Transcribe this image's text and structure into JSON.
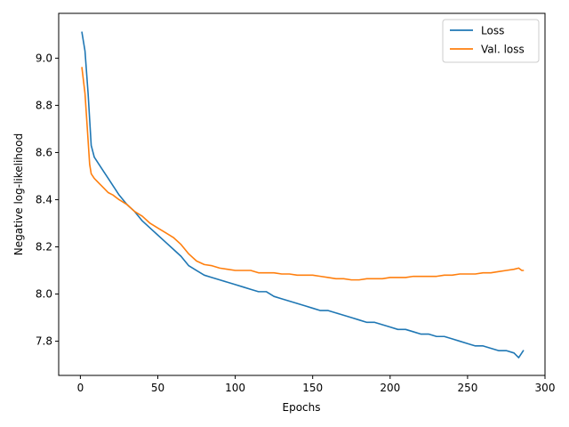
{
  "chart_data": {
    "type": "line",
    "title": "",
    "xlabel": "Epochs",
    "ylabel": "Negative log-likelihood",
    "xlim": [
      -14,
      300
    ],
    "ylim": [
      7.655,
      9.19
    ],
    "xticks": [
      0,
      50,
      100,
      150,
      200,
      250,
      300
    ],
    "yticks": [
      7.8,
      8.0,
      8.2,
      8.4,
      8.6,
      8.8,
      9.0
    ],
    "grid": false,
    "legend_position": "top-right",
    "series": [
      {
        "name": "Loss",
        "color": "#1f77b4",
        "x": [
          1,
          3,
          5,
          7,
          9,
          12,
          15,
          18,
          21,
          25,
          30,
          35,
          40,
          45,
          50,
          55,
          60,
          65,
          70,
          75,
          80,
          85,
          90,
          95,
          100,
          105,
          110,
          115,
          120,
          125,
          130,
          135,
          140,
          145,
          150,
          155,
          160,
          165,
          170,
          175,
          180,
          185,
          190,
          195,
          200,
          205,
          210,
          215,
          220,
          225,
          230,
          235,
          240,
          245,
          250,
          255,
          260,
          265,
          270,
          275,
          280,
          283,
          285,
          286
        ],
        "y": [
          9.11,
          9.03,
          8.85,
          8.63,
          8.58,
          8.55,
          8.52,
          8.49,
          8.46,
          8.42,
          8.38,
          8.35,
          8.31,
          8.28,
          8.25,
          8.22,
          8.19,
          8.16,
          8.12,
          8.1,
          8.08,
          8.07,
          8.06,
          8.05,
          8.04,
          8.03,
          8.02,
          8.01,
          8.01,
          7.99,
          7.98,
          7.97,
          7.96,
          7.95,
          7.94,
          7.93,
          7.93,
          7.92,
          7.91,
          7.9,
          7.89,
          7.88,
          7.88,
          7.87,
          7.86,
          7.85,
          7.85,
          7.84,
          7.83,
          7.83,
          7.82,
          7.82,
          7.81,
          7.8,
          7.79,
          7.78,
          7.78,
          7.77,
          7.76,
          7.76,
          7.75,
          7.73,
          7.75,
          7.76
        ]
      },
      {
        "name": "Val. loss",
        "color": "#ff7f0e",
        "x": [
          1,
          3,
          5,
          6,
          7,
          9,
          12,
          15,
          18,
          21,
          25,
          30,
          35,
          40,
          45,
          50,
          55,
          60,
          65,
          70,
          75,
          80,
          85,
          90,
          95,
          100,
          105,
          110,
          115,
          120,
          125,
          130,
          135,
          140,
          145,
          150,
          155,
          160,
          165,
          170,
          175,
          180,
          185,
          190,
          195,
          200,
          205,
          210,
          215,
          220,
          225,
          230,
          235,
          240,
          245,
          250,
          255,
          260,
          265,
          270,
          275,
          280,
          283,
          285,
          286
        ],
        "y": [
          8.96,
          8.85,
          8.65,
          8.55,
          8.51,
          8.49,
          8.47,
          8.45,
          8.43,
          8.42,
          8.4,
          8.38,
          8.35,
          8.33,
          8.3,
          8.28,
          8.26,
          8.24,
          8.21,
          8.17,
          8.14,
          8.125,
          8.12,
          8.11,
          8.105,
          8.1,
          8.1,
          8.1,
          8.09,
          8.09,
          8.09,
          8.085,
          8.085,
          8.08,
          8.08,
          8.08,
          8.075,
          8.07,
          8.065,
          8.065,
          8.06,
          8.06,
          8.065,
          8.065,
          8.065,
          8.07,
          8.07,
          8.07,
          8.075,
          8.075,
          8.075,
          8.075,
          8.08,
          8.08,
          8.085,
          8.085,
          8.085,
          8.09,
          8.09,
          8.095,
          8.1,
          8.105,
          8.11,
          8.1,
          8.1
        ]
      }
    ]
  }
}
